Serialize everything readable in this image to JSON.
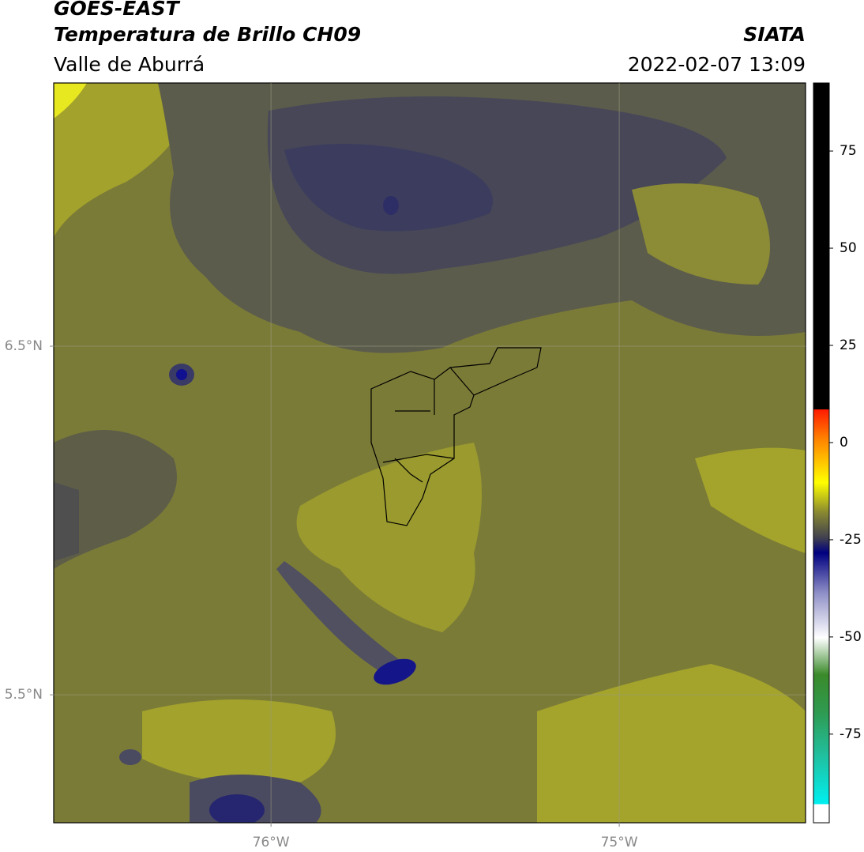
{
  "header": {
    "title": "GOES-EAST",
    "subtitle": "Temperatura de Brillo CH09",
    "region": "Valle de Aburrá",
    "source": "SIATA",
    "datetime": "2022-02-07 13:09"
  },
  "map": {
    "xlim": [
      -76.624,
      -74.465
    ],
    "ylim": [
      5.133,
      7.255
    ],
    "xticks": [
      {
        "value": -76,
        "label": "76°W"
      },
      {
        "value": -75,
        "label": "75°W"
      }
    ],
    "yticks": [
      {
        "value": 6.5,
        "label": "6.5°N"
      },
      {
        "value": 5.5,
        "label": "5.5°N"
      }
    ],
    "grid": true
  },
  "colorbar": {
    "lim": [
      -97.8,
      92.5
    ],
    "ticks": [
      75,
      50,
      25,
      0,
      -25,
      -50,
      -75
    ]
  }
}
